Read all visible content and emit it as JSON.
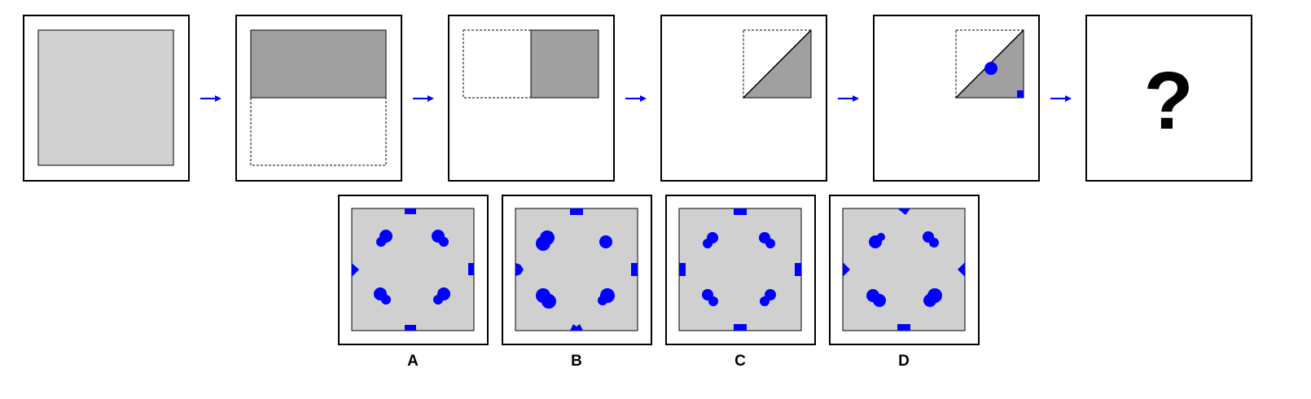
{
  "puzzle": {
    "steps": [
      {
        "id": "step-1-paper",
        "description": ""
      },
      {
        "id": "step-2-fold-top",
        "description": ""
      },
      {
        "id": "step-3-fold-left",
        "description": ""
      },
      {
        "id": "step-4-fold-diagonal",
        "description": ""
      },
      {
        "id": "step-5-punch",
        "description": ""
      },
      {
        "id": "step-6-answer",
        "question_mark": "?"
      }
    ],
    "options": [
      {
        "label": "A"
      },
      {
        "label": "B"
      },
      {
        "label": "C"
      },
      {
        "label": "D"
      }
    ]
  },
  "colors": {
    "paper": "#d0d0d0",
    "folded": "#a0a0a0",
    "hole": "#0000ff",
    "arrow": "#0000ff",
    "border": "#000000"
  }
}
